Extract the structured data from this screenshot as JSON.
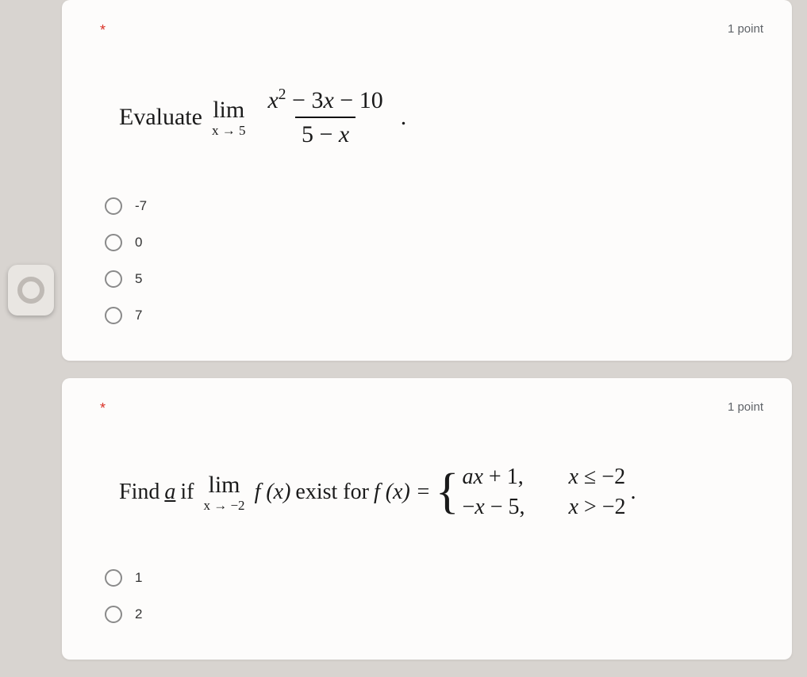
{
  "colors": {
    "page_bg": "#d8d4d0",
    "card_bg": "#fdfcfb",
    "text": "#1a1a1a",
    "muted": "#5f6368",
    "required": "#d93025",
    "radio_border": "#8a8a8a"
  },
  "q1": {
    "required_marker": "*",
    "points_label": "1 point",
    "prompt_word": "Evaluate",
    "lim_label": "lim",
    "lim_approach": "x → 5",
    "numerator": "x² − 3x − 10",
    "denominator": "5 − x",
    "trailing_dot": ".",
    "options": [
      {
        "label": "-7",
        "value": "-7"
      },
      {
        "label": "0",
        "value": "0"
      },
      {
        "label": "5",
        "value": "5"
      },
      {
        "label": "7",
        "value": "7"
      }
    ]
  },
  "q2": {
    "required_marker": "*",
    "points_label": "1 point",
    "prompt_prefix": "Find ",
    "prompt_var": "a",
    "prompt_mid": " if ",
    "lim_label": "lim",
    "lim_approach": "x → −2",
    "fx1": "f (x)",
    "exist_text": " exist for ",
    "fx2": "f (x) = ",
    "piece1_expr": "ax + 1,",
    "piece1_cond": "x ≤ −2",
    "piece2_expr": "−x − 5,",
    "piece2_cond": "x > −2",
    "trailing_dot": ".",
    "options": [
      {
        "label": "1",
        "value": "1"
      },
      {
        "label": "2",
        "value": "2"
      }
    ]
  }
}
